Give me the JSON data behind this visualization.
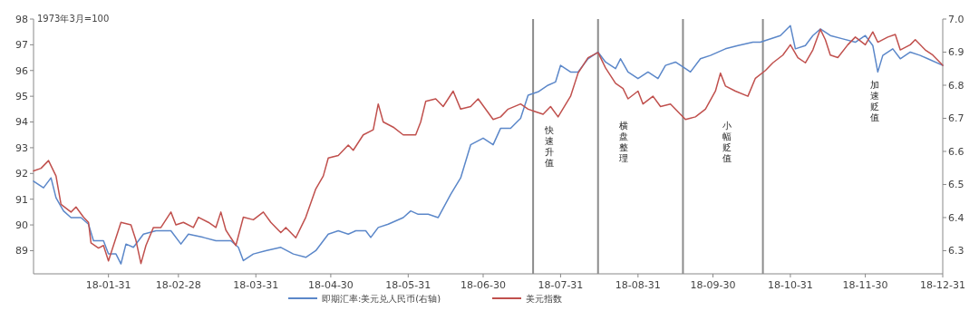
{
  "chart_data": {
    "type": "line",
    "ylabel": "1973年3月=100",
    "ylim": [
      88.1,
      98
    ],
    "yticks": [
      89,
      90,
      91,
      92,
      93,
      94,
      95,
      96,
      97,
      98
    ],
    "y2lim": [
      6.23,
      7.0
    ],
    "y2ticks": [
      {
        "value": 6.3,
        "label": "6.3"
      },
      {
        "value": 6.4,
        "label": "6.4"
      },
      {
        "value": 6.5,
        "label": "6.5"
      },
      {
        "value": 6.6,
        "label": "6.6"
      },
      {
        "value": 6.7,
        "label": "6.7"
      },
      {
        "value": 6.8,
        "label": "6.8"
      },
      {
        "value": 6.9,
        "label": "6.9"
      },
      {
        "value": 7.0,
        "label": "7.0"
      }
    ],
    "xlim": [
      "--01-01",
      "--12-31"
    ],
    "xticks": [
      {
        "value": "--01-31",
        "label": "18-01-31"
      },
      {
        "value": "--02-28",
        "label": "18-02-28"
      },
      {
        "value": "--03-31",
        "label": "18-03-31"
      },
      {
        "value": "--04-30",
        "label": "18-04-30"
      },
      {
        "value": "--05-31",
        "label": "18-05-31"
      },
      {
        "value": "--06-30",
        "label": "18-06-30"
      },
      {
        "value": "--07-31",
        "label": "18-07-31"
      },
      {
        "value": "--08-31",
        "label": "18-08-31"
      },
      {
        "value": "--09-30",
        "label": "18-09-30"
      },
      {
        "value": "--10-31",
        "label": "18-10-31"
      },
      {
        "value": "--11-30",
        "label": "18-11-30"
      },
      {
        "value": "--12-31",
        "label": "18-12-31"
      }
    ],
    "grid": false,
    "legend": "bottom",
    "marker": "none",
    "line_style": "solid",
    "series": [
      {
        "name": "即期汇率:美元兑人民币(右轴)",
        "color": "#5b87c9",
        "axis": "y2",
        "x": [
          "--01-01",
          "--01-05",
          "--01-08",
          "--01-10",
          "--01-13",
          "--01-16",
          "--01-20",
          "--01-23",
          "--01-25",
          "--01-29",
          "--01-31",
          "--02-03",
          "--02-05",
          "--02-07",
          "--02-10",
          "--02-14",
          "--02-19",
          "--02-25",
          "--03-01",
          "--03-04",
          "--03-10",
          "--03-15",
          "--03-21",
          "--03-24",
          "--03-26",
          "--03-30",
          "--04-04",
          "--04-10",
          "--04-15",
          "--04-20",
          "--04-24",
          "--04-29",
          "--05-03",
          "--05-07",
          "--05-10",
          "--05-14",
          "--05-16",
          "--05-19",
          "--05-23",
          "--05-29",
          "--06-01",
          "--06-04",
          "--06-08",
          "--06-12",
          "--06-17",
          "--06-21",
          "--06-25",
          "--06-30",
          "--07-04",
          "--07-07",
          "--07-11",
          "--07-15",
          "--07-18",
          "--07-22",
          "--07-26",
          "--07-29",
          "--07-31",
          "--08-04",
          "--08-07",
          "--08-11",
          "--08-15",
          "--08-18",
          "--08-22",
          "--08-24",
          "--08-27",
          "--08-31",
          "--09-04",
          "--09-08",
          "--09-11",
          "--09-15",
          "--09-19",
          "--09-21",
          "--09-25",
          "--09-29",
          "--10-05",
          "--10-10",
          "--10-16",
          "--10-19",
          "--10-27",
          "--10-31",
          "--11-02",
          "--11-06",
          "--11-09",
          "--11-12",
          "--11-16",
          "--11-21",
          "--11-26",
          "--11-30",
          "--12-03",
          "--12-05",
          "--12-07",
          "--12-11",
          "--12-14",
          "--12-18",
          "--12-22",
          "--12-25",
          "--12-31"
        ],
        "values": [
          6.51,
          6.49,
          6.52,
          6.46,
          6.42,
          6.4,
          6.4,
          6.38,
          6.33,
          6.33,
          6.29,
          6.29,
          6.26,
          6.32,
          6.31,
          6.35,
          6.36,
          6.36,
          6.32,
          6.35,
          6.34,
          6.33,
          6.33,
          6.31,
          6.27,
          6.29,
          6.3,
          6.31,
          6.29,
          6.28,
          6.3,
          6.35,
          6.36,
          6.35,
          6.36,
          6.36,
          6.34,
          6.37,
          6.38,
          6.4,
          6.42,
          6.41,
          6.41,
          6.4,
          6.47,
          6.52,
          6.62,
          6.64,
          6.62,
          6.67,
          6.67,
          6.7,
          6.77,
          6.78,
          6.8,
          6.81,
          6.86,
          6.84,
          6.84,
          6.88,
          6.9,
          6.87,
          6.85,
          6.88,
          6.84,
          6.82,
          6.84,
          6.82,
          6.86,
          6.87,
          6.85,
          6.84,
          6.88,
          6.89,
          6.91,
          6.92,
          6.93,
          6.93,
          6.95,
          6.98,
          6.91,
          6.92,
          6.95,
          6.97,
          6.95,
          6.94,
          6.93,
          6.95,
          6.92,
          6.84,
          6.89,
          6.91,
          6.88,
          6.9,
          6.89,
          6.88,
          6.86
        ]
      },
      {
        "name": "美元指数",
        "color": "#c0504d",
        "x": [
          "--01-01",
          "--01-04",
          "--01-07",
          "--01-10",
          "--01-12",
          "--01-16",
          "--01-18",
          "--01-21",
          "--01-23",
          "--01-24",
          "--01-27",
          "--01-29",
          "--01-31",
          "--02-03",
          "--02-05",
          "--02-09",
          "--02-11",
          "--02-13",
          "--02-15",
          "--02-18",
          "--02-21",
          "--02-25",
          "--02-27",
          "--03-02",
          "--03-06",
          "--03-08",
          "--03-12",
          "--03-15",
          "--03-17",
          "--03-19",
          "--03-23",
          "--03-26",
          "--03-30",
          "--04-03",
          "--04-06",
          "--04-10",
          "--04-12",
          "--04-16",
          "--04-20",
          "--04-24",
          "--04-27",
          "--04-29",
          "--05-03",
          "--05-07",
          "--05-09",
          "--05-13",
          "--05-17",
          "--05-19",
          "--05-21",
          "--05-25",
          "--05-29",
          "--06-03",
          "--06-05",
          "--06-07",
          "--06-11",
          "--06-14",
          "--06-18",
          "--06-21",
          "--06-25",
          "--06-28",
          "--07-04",
          "--07-07",
          "--07-10",
          "--07-15",
          "--07-18",
          "--07-21",
          "--07-24",
          "--07-27",
          "--07-30",
          "--08-04",
          "--08-07",
          "--08-11",
          "--08-15",
          "--08-18",
          "--08-22",
          "--08-25",
          "--08-27",
          "--08-31",
          "--09-02",
          "--09-06",
          "--09-09",
          "--09-13",
          "--09-16",
          "--09-19",
          "--09-23",
          "--09-27",
          "--10-01",
          "--10-03",
          "--10-05",
          "--10-09",
          "--10-14",
          "--10-17",
          "--10-21",
          "--10-24",
          "--10-28",
          "--10-31",
          "--11-03",
          "--11-06",
          "--11-09",
          "--11-12",
          "--11-14",
          "--11-16",
          "--11-19",
          "--11-23",
          "--11-26",
          "--11-30",
          "--12-03",
          "--12-05",
          "--12-09",
          "--12-12",
          "--12-14",
          "--12-18",
          "--12-20",
          "--12-24",
          "--12-27",
          "--12-31"
        ],
        "values": [
          92.1,
          92.2,
          92.5,
          91.9,
          90.8,
          90.5,
          90.7,
          90.3,
          90.1,
          89.3,
          89.1,
          89.2,
          88.6,
          89.5,
          90.1,
          90.0,
          89.4,
          88.5,
          89.2,
          89.9,
          89.9,
          90.5,
          90.0,
          90.1,
          89.9,
          90.3,
          90.1,
          89.9,
          90.5,
          89.8,
          89.2,
          90.3,
          90.2,
          90.5,
          90.1,
          89.7,
          89.9,
          89.5,
          90.3,
          91.4,
          91.9,
          92.6,
          92.7,
          93.1,
          92.9,
          93.5,
          93.7,
          94.7,
          94.0,
          93.8,
          93.5,
          93.5,
          94.0,
          94.8,
          94.9,
          94.6,
          95.2,
          94.5,
          94.6,
          94.9,
          94.1,
          94.2,
          94.5,
          94.7,
          94.5,
          94.4,
          94.3,
          94.6,
          94.2,
          95.0,
          95.9,
          96.5,
          96.7,
          96.1,
          95.5,
          95.3,
          94.9,
          95.2,
          94.7,
          95.0,
          94.6,
          94.7,
          94.4,
          94.1,
          94.2,
          94.5,
          95.2,
          95.9,
          95.4,
          95.2,
          95.0,
          95.7,
          96.0,
          96.3,
          96.6,
          97.0,
          96.5,
          96.3,
          96.8,
          97.6,
          97.2,
          96.6,
          96.5,
          97.0,
          97.3,
          97.0,
          97.5,
          97.1,
          97.3,
          97.4,
          96.8,
          97.0,
          97.2,
          96.8,
          96.6,
          96.2
        ]
      }
    ],
    "ref_lines": [
      {
        "axis": "x",
        "value": "--07-20",
        "color": "#8c8c8c"
      },
      {
        "axis": "x",
        "value": "--08-15",
        "color": "#8c8c8c"
      },
      {
        "axis": "x",
        "value": "--09-18",
        "color": "#8c8c8c"
      },
      {
        "axis": "x",
        "value": "--10-20",
        "color": "#8c8c8c"
      }
    ],
    "annotations": [
      "快速升值",
      "横盘整理",
      "小幅贬值",
      "加速贬值"
    ]
  }
}
